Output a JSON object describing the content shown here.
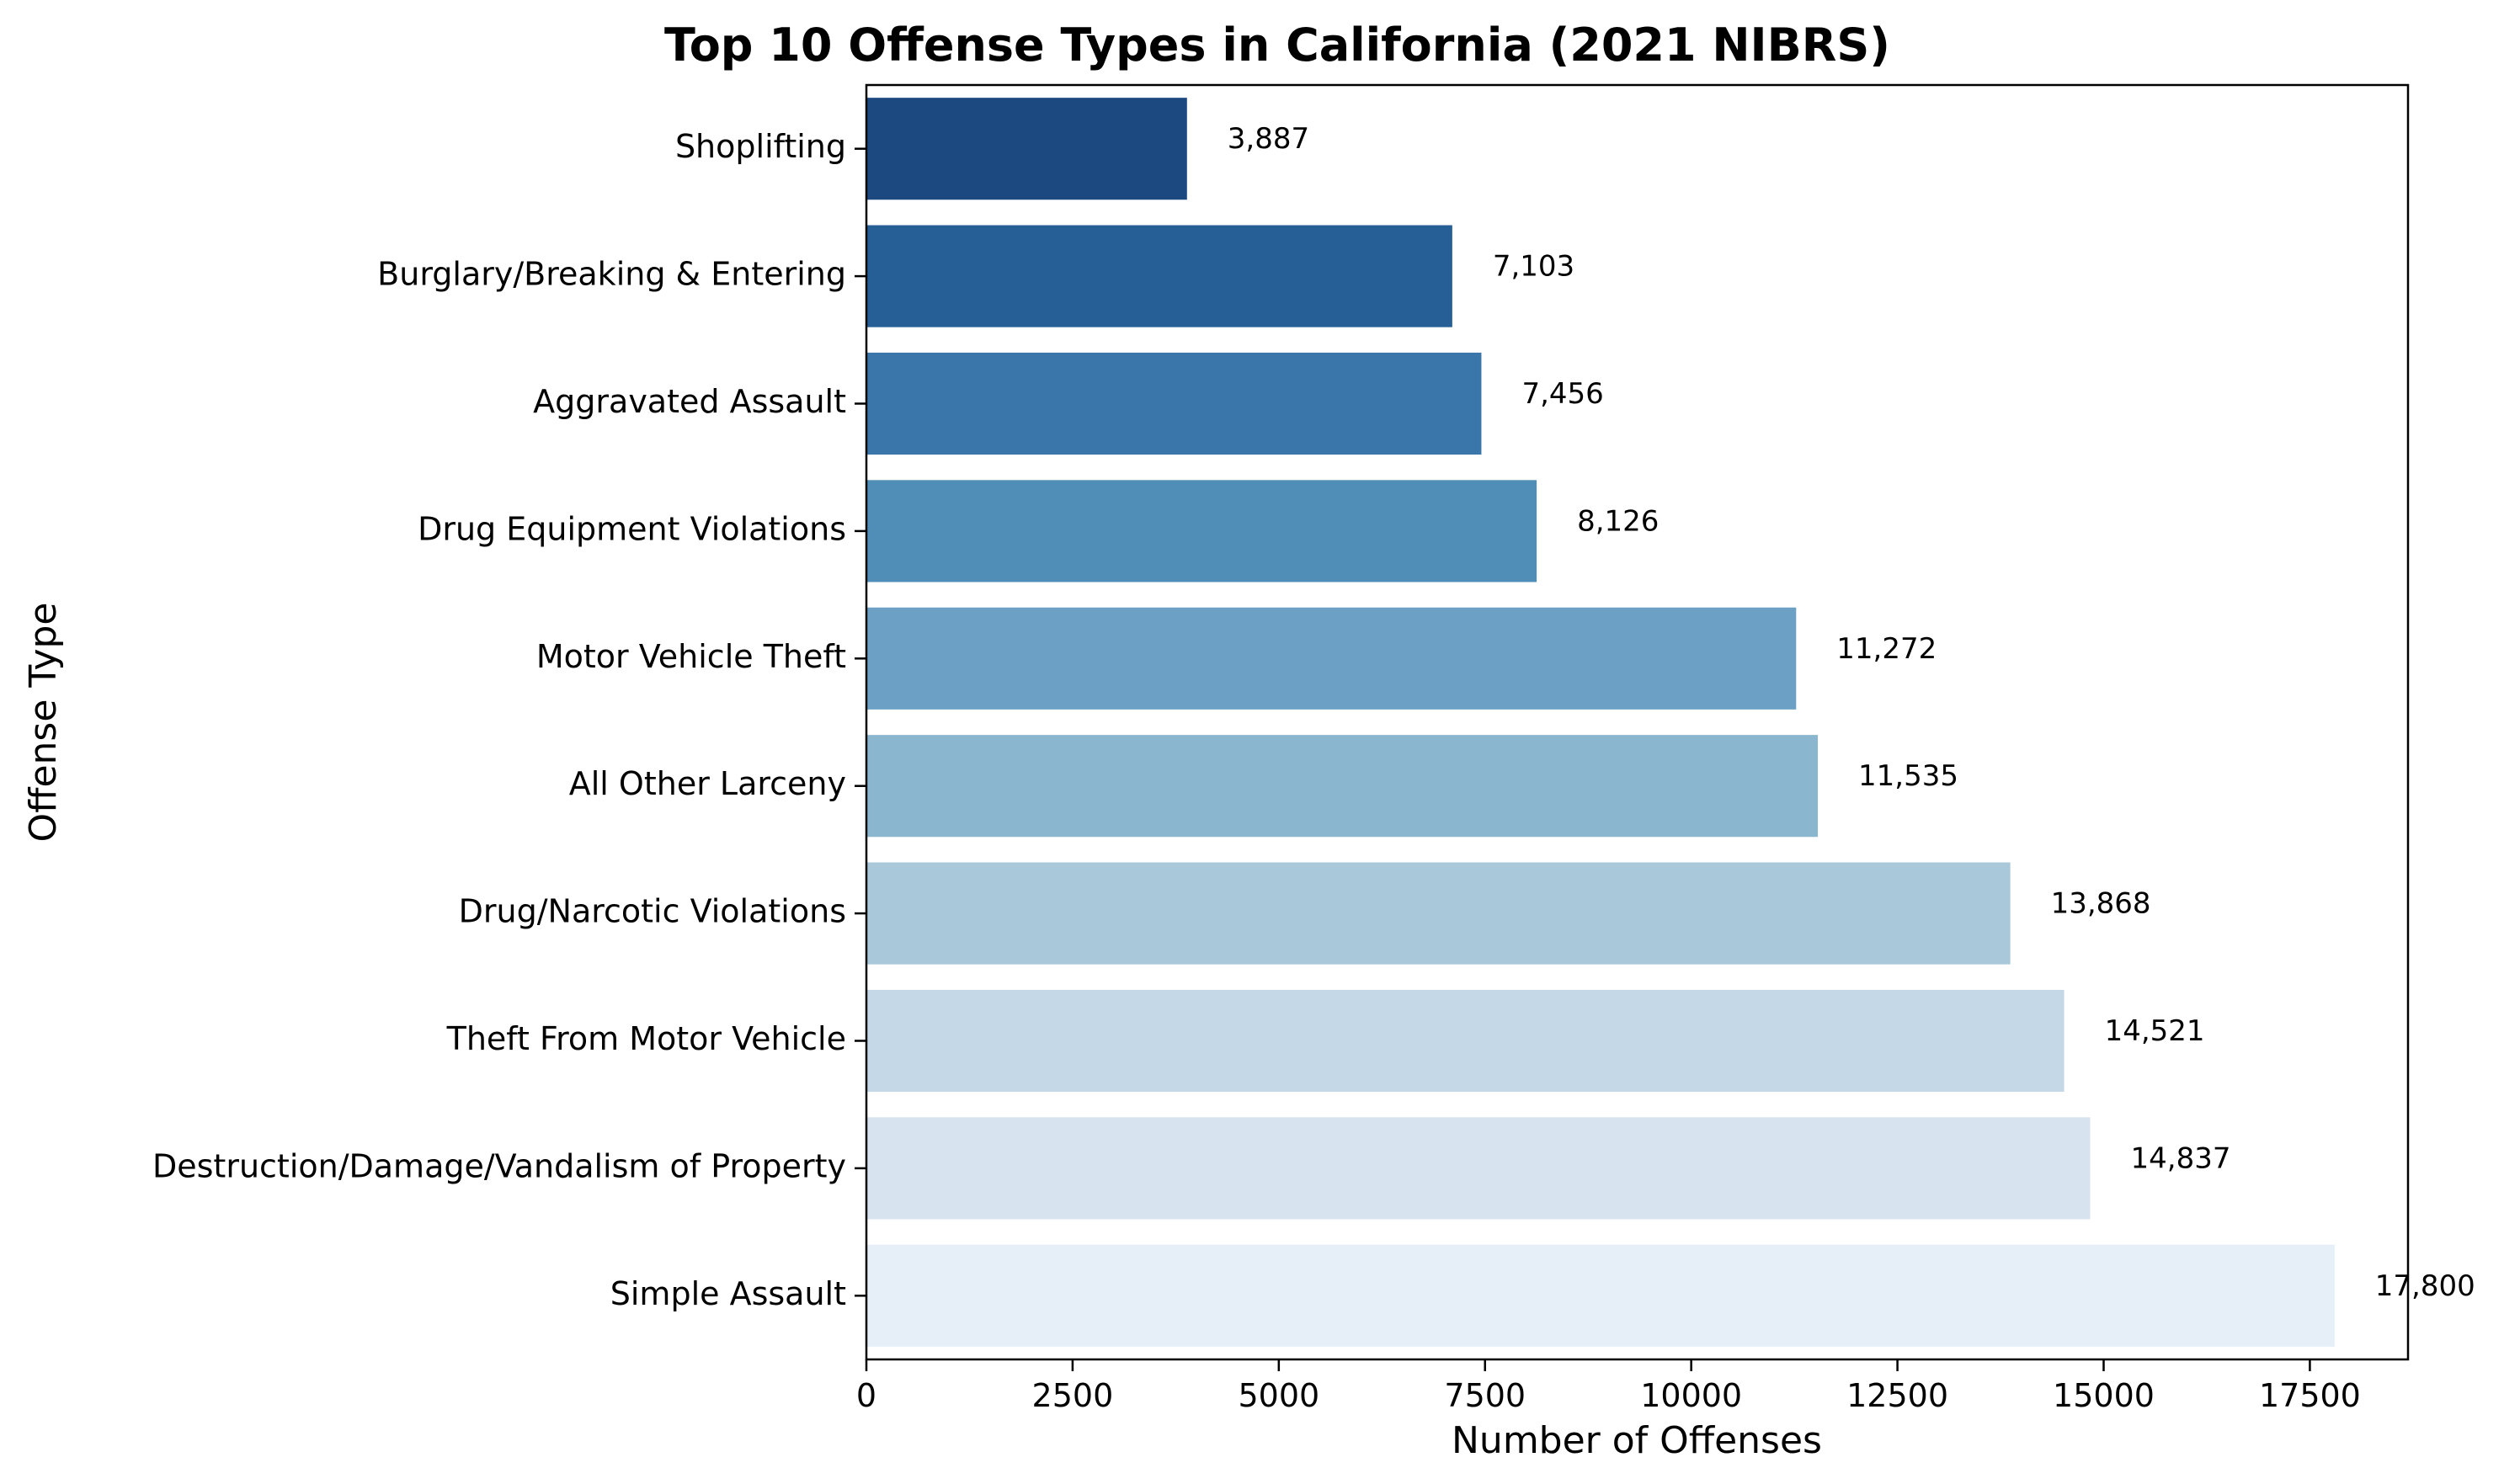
{
  "chart_data": {
    "type": "bar",
    "orientation": "horizontal",
    "title": "Top 10 Offense Types in California (2021 NIBRS)",
    "xlabel": "Number of Offenses",
    "ylabel": "Offense Type",
    "categories": [
      "Shoplifting",
      "Burglary/Breaking & Entering",
      "Aggravated Assault",
      "Drug Equipment Violations",
      "Motor Vehicle Theft",
      "All Other Larceny",
      "Drug/Narcotic Violations",
      "Theft From Motor Vehicle",
      "Destruction/Damage/Vandalism of Property",
      "Simple Assault"
    ],
    "values": [
      3887,
      7103,
      7456,
      8126,
      11272,
      11535,
      13868,
      14521,
      14837,
      17800
    ],
    "value_labels": [
      "3,887",
      "7,103",
      "7,456",
      "8,126",
      "11,272",
      "11,535",
      "13,868",
      "14,521",
      "14,837",
      "17,800"
    ],
    "colors": [
      "#1c4a80",
      "#255f95",
      "#3a76a9",
      "#508db7",
      "#6ca1c5",
      "#8ab6cf",
      "#a9c8da",
      "#c4d8e7",
      "#d7e3ef",
      "#e6eef7"
    ],
    "xlim": [
      0,
      18690
    ],
    "xticks": [
      0,
      2500,
      5000,
      7500,
      10000,
      12500,
      15000,
      17500
    ],
    "xtick_labels": [
      "0",
      "2500",
      "5000",
      "7500",
      "10000",
      "12500",
      "15000",
      "17500"
    ],
    "grid": false,
    "legend": "none"
  }
}
